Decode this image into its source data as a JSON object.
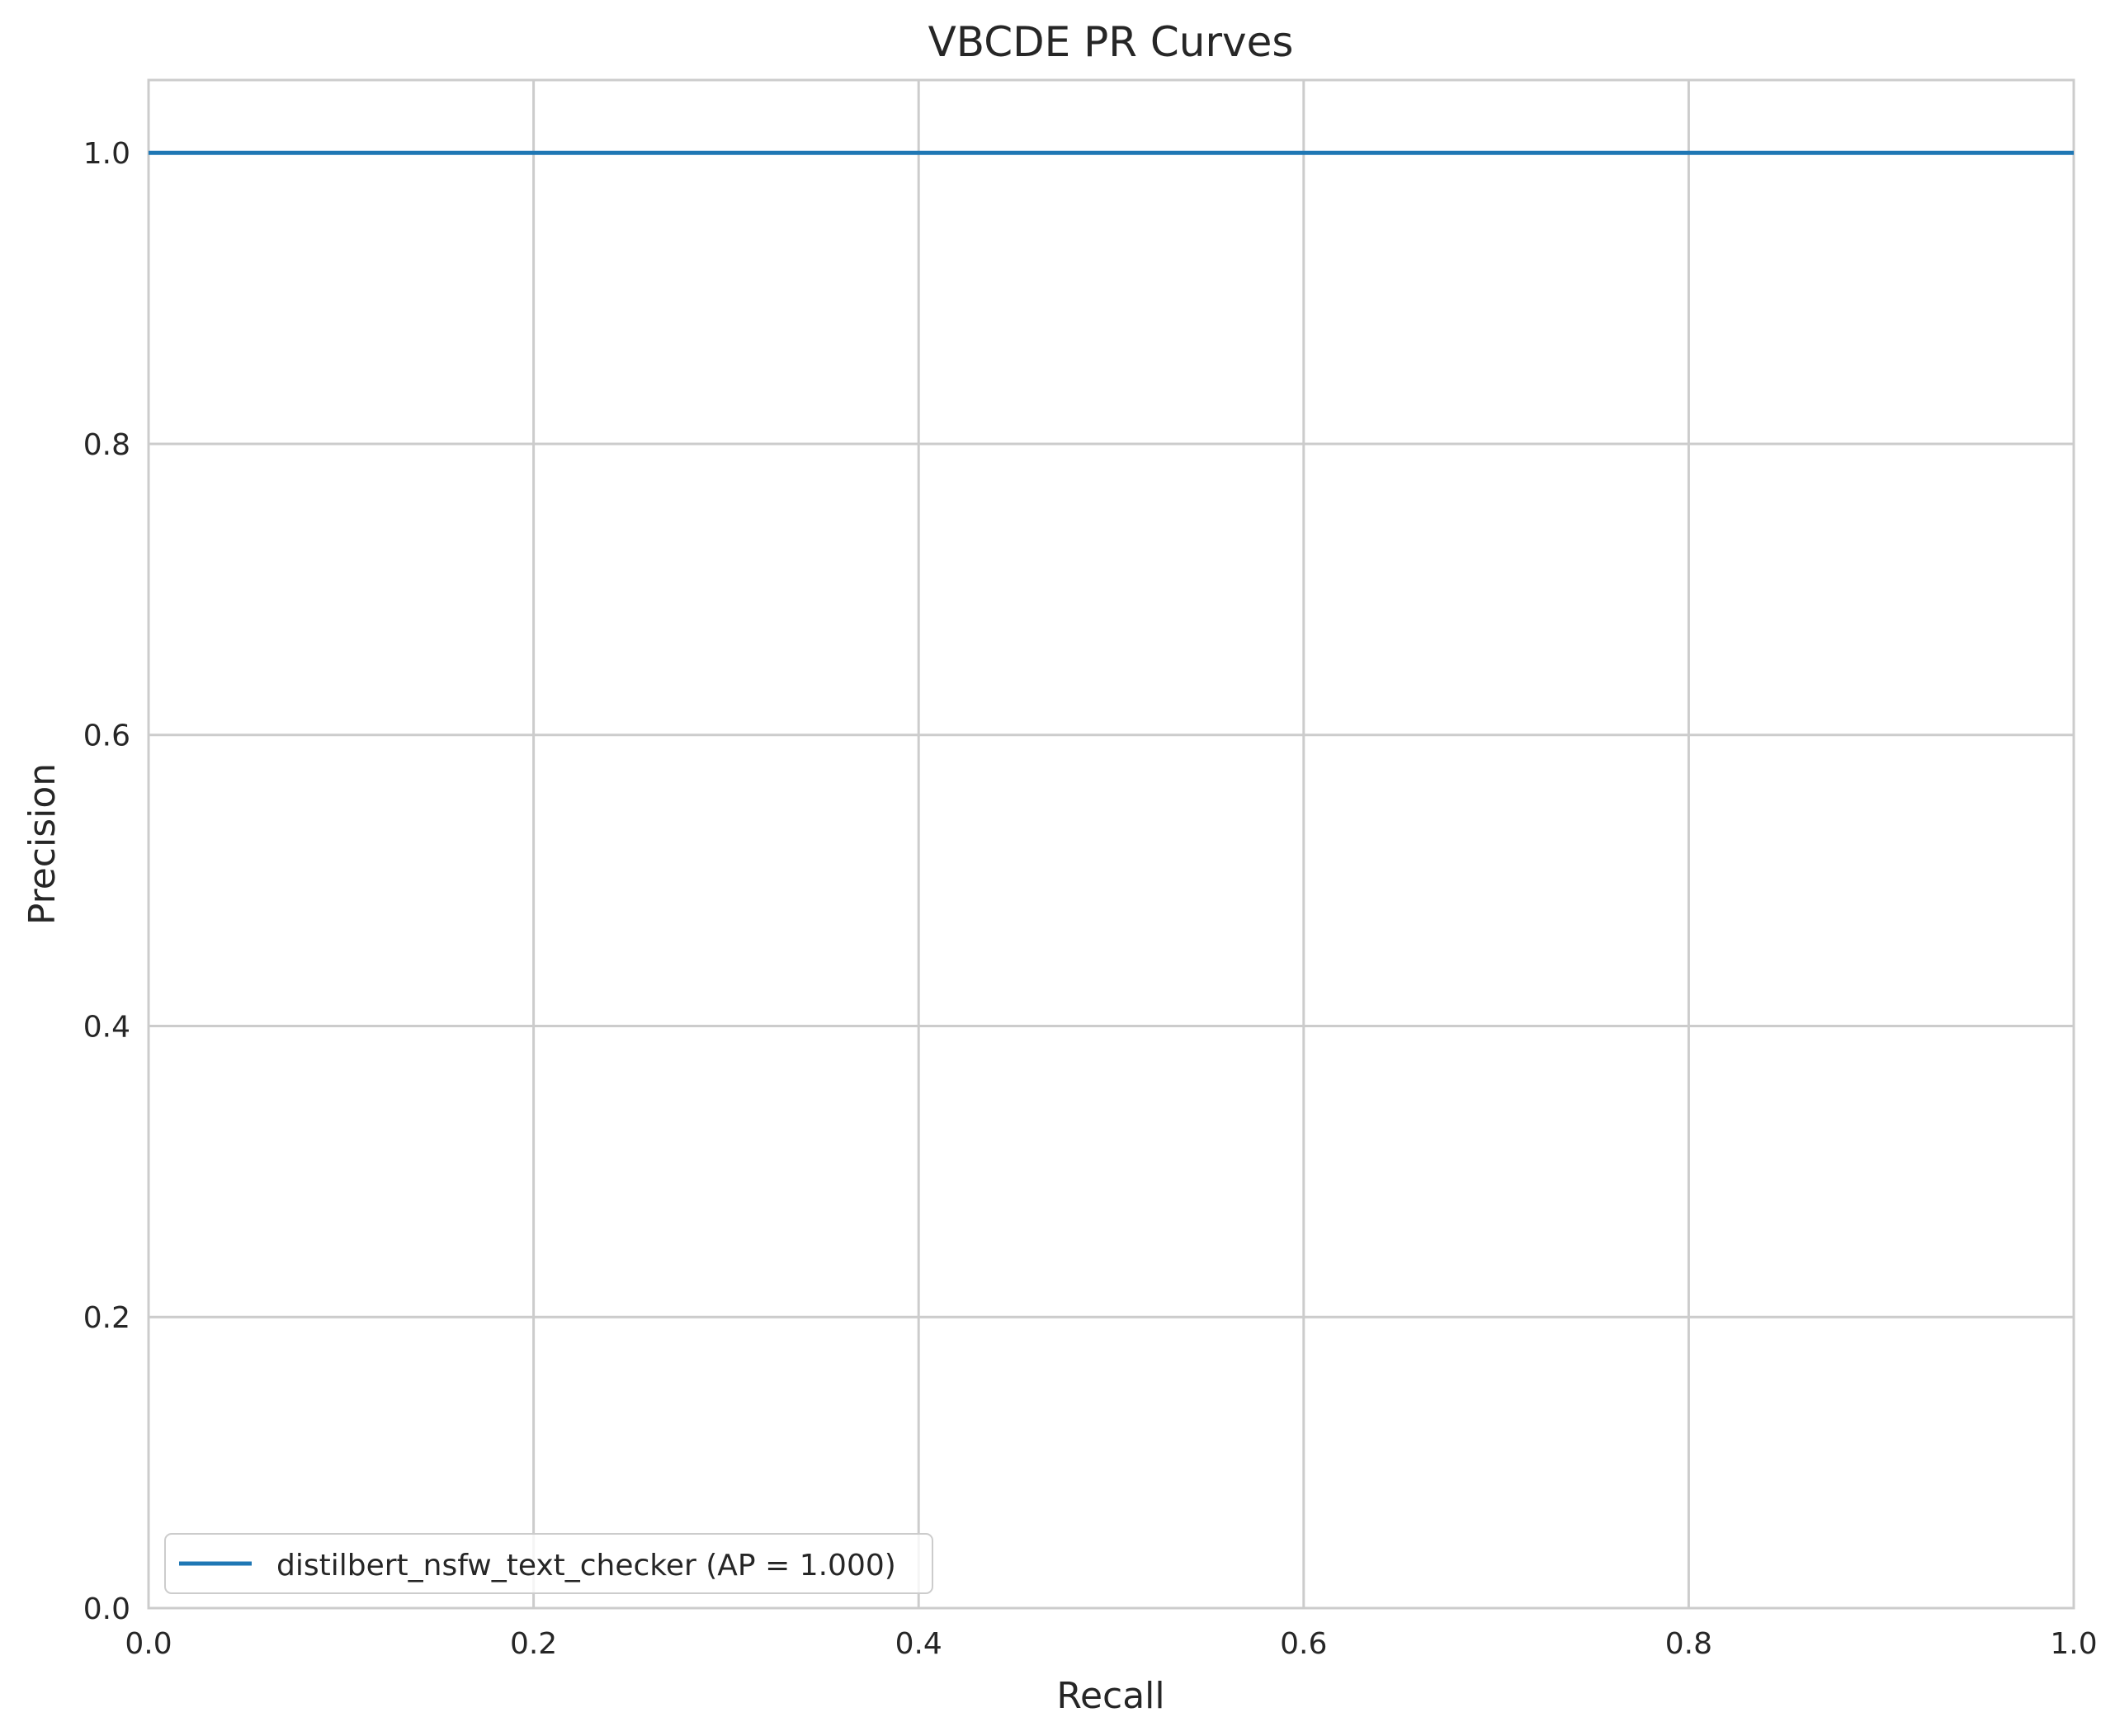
{
  "chart_data": {
    "type": "line",
    "title": "VBCDE PR Curves",
    "xlabel": "Recall",
    "ylabel": "Precision",
    "xlim": [
      0.0,
      1.0
    ],
    "ylim": [
      0.0,
      1.05
    ],
    "xticks": [
      0.0,
      0.2,
      0.4,
      0.6,
      0.8,
      1.0
    ],
    "xtick_labels": [
      "0.0",
      "0.2",
      "0.4",
      "0.6",
      "0.8",
      "1.0"
    ],
    "yticks": [
      0.0,
      0.2,
      0.4,
      0.6,
      0.8,
      1.0
    ],
    "ytick_labels": [
      "0.0",
      "0.2",
      "0.4",
      "0.6",
      "0.8",
      "1.0"
    ],
    "grid": true,
    "legend_position": "lower-left",
    "series": [
      {
        "name": "distilbert_nsfw_text_checker (AP = 1.000)",
        "color": "#1f77b4",
        "x": [
          0.0,
          1.0
        ],
        "y": [
          1.0,
          1.0
        ]
      }
    ]
  }
}
